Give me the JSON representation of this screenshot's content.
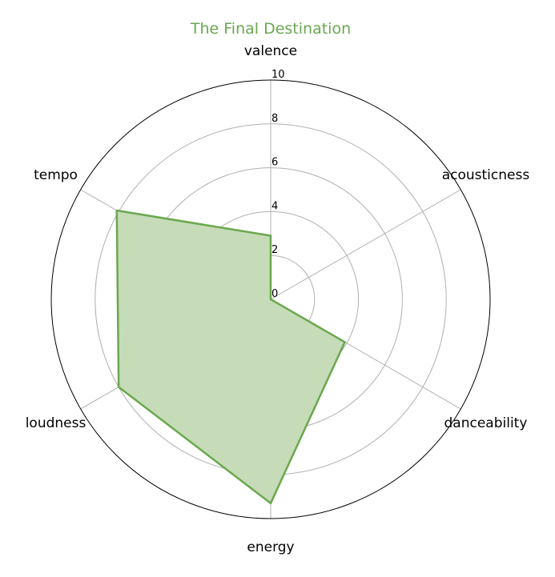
{
  "chart_data": {
    "type": "radar",
    "title": "The Final Destination",
    "axes": [
      "valence",
      "acousticness",
      "danceability",
      "energy",
      "loudness",
      "tempo"
    ],
    "rlim": [
      0,
      10
    ],
    "rticks": [
      0,
      2,
      4,
      6,
      8,
      10
    ],
    "series": [
      {
        "values": [
          2.9,
          0.0,
          3.9,
          9.3,
          8.0,
          8.1
        ]
      }
    ],
    "grid": true,
    "color": "#6aa84f",
    "fill_color": "#c6dbb8",
    "title_color": "#6aa84f"
  }
}
